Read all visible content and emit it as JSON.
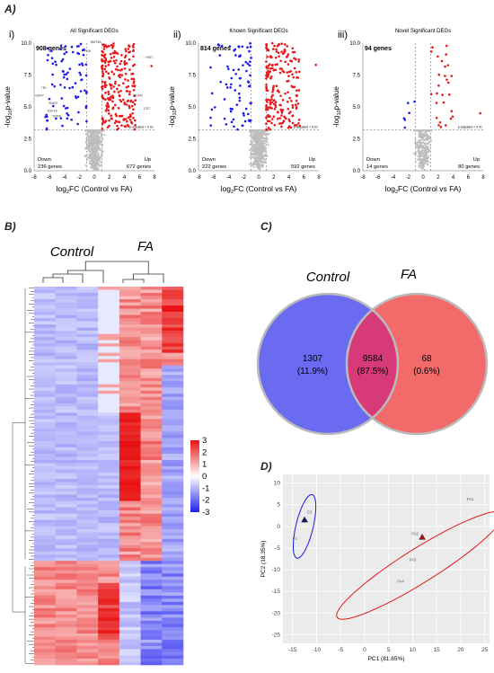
{
  "panels": {
    "A": "A)",
    "B": "B)",
    "C": "C)",
    "D": "D)"
  },
  "colors": {
    "up": "#e8191b",
    "down": "#1c1cf0",
    "ns": "#bdbdbd",
    "venn_control": "#6b6bf2",
    "venn_fa": "#f36a6a",
    "venn_overlap": "#d63a78",
    "heat_high": "#e81010",
    "heat_mid": "#ffffff",
    "heat_low": "#2020f0",
    "pca_ellipse_control": "#1a1adb",
    "pca_ellipse_fa": "#e01b1b"
  },
  "volcano": [
    {
      "roman": "i)",
      "title": "All Significant DEGs",
      "genes": "908 genes",
      "down_label": "Down",
      "down_genes": "236 genes",
      "up_label": "Up",
      "up_genes": "672 genes",
      "padj": "p-adjusted < 0.01",
      "gene_labels": [
        "HIST",
        "PGK",
        "NMT5A",
        "ITK",
        "SNKS",
        "ESF14",
        "BCAN",
        "GDF7",
        "TORA",
        "CD7"
      ]
    },
    {
      "roman": "ii)",
      "title": "Known Significant DEGs",
      "genes": "814 genes",
      "down_label": "Down",
      "down_genes": "222 genes",
      "up_label": "Up",
      "up_genes": "592 genes",
      "padj": "p-adjusted < 0.01",
      "gene_labels": []
    },
    {
      "roman": "iii)",
      "title": "Novel Significant DEGs",
      "genes": "94 genes",
      "down_label": "Down",
      "down_genes": "14 genes",
      "up_label": "Up",
      "up_genes": "80 genes",
      "padj": "p-adjusted < 0.01",
      "gene_labels": []
    }
  ],
  "heatmap": {
    "col_labels": [
      "Control",
      "FA"
    ],
    "legend_ticks": [
      "3",
      "2",
      "1",
      "0",
      "-1",
      "-2",
      "-3"
    ]
  },
  "venn": {
    "sets": [
      "Control",
      "FA"
    ],
    "left_count": "1307",
    "left_pct": "(11.9%)",
    "mid_count": "9584",
    "mid_pct": "(87.5%)",
    "right_count": "68",
    "right_pct": "(0.6%)"
  },
  "chart_data": [
    {
      "type": "scatter",
      "title": "All Significant DEGs",
      "xlabel": "log2FC (Control vs FA)",
      "ylabel": "-log10p-value",
      "xlim": [
        -8,
        8
      ],
      "ylim": [
        0,
        10
      ],
      "xticks": [
        "-8",
        "-6",
        "-4",
        "-2",
        "0",
        "2",
        "4",
        "6",
        "8"
      ],
      "yticks": [
        "0.0",
        "2.5",
        "5.0",
        "7.5",
        "10.0"
      ],
      "series": [
        {
          "name": "Down",
          "count": 236
        },
        {
          "name": "Up",
          "count": 672
        }
      ]
    },
    {
      "type": "scatter",
      "title": "Known Significant DEGs",
      "xlabel": "log2FC (Control vs FA)",
      "ylabel": "-log10p-value",
      "xlim": [
        -8,
        8
      ],
      "ylim": [
        0,
        10
      ],
      "xticks": [
        "-8",
        "-6",
        "-4",
        "-2",
        "0",
        "2",
        "4",
        "6",
        "8"
      ],
      "yticks": [
        "0.0",
        "2.5",
        "5.0",
        "7.5",
        "10.0"
      ],
      "series": [
        {
          "name": "Down",
          "count": 222
        },
        {
          "name": "Up",
          "count": 592
        }
      ]
    },
    {
      "type": "scatter",
      "title": "Novel Significant DEGs",
      "xlabel": "log2FC (Control vs FA)",
      "ylabel": "-log10p-value",
      "xlim": [
        -8,
        8
      ],
      "ylim": [
        0,
        10
      ],
      "xticks": [
        "-8",
        "-6",
        "-4",
        "-2",
        "0",
        "2",
        "4",
        "6",
        "8"
      ],
      "yticks": [
        "0.0",
        "2.5",
        "5.0",
        "7.5",
        "10.0"
      ],
      "series": [
        {
          "name": "Down",
          "count": 14
        },
        {
          "name": "Up",
          "count": 80
        }
      ]
    },
    {
      "type": "scatter",
      "title": "",
      "xlabel": "PC1 (81.65%)",
      "ylabel": "PC2 (18.35%)",
      "xlim": [
        -17,
        26
      ],
      "ylim": [
        -27,
        12
      ],
      "xticks": [
        "-15",
        "-10",
        "-5",
        "0",
        "5",
        "10",
        "15",
        "20",
        "25"
      ],
      "yticks": [
        "-25",
        "-20",
        "-15",
        "-10",
        "-5",
        "0",
        "5",
        "10"
      ],
      "points": [
        {
          "label": "C1",
          "x": -14.5,
          "y": -3
        },
        {
          "label": "C2",
          "x": -12.5,
          "y": 1
        },
        {
          "label": "C3",
          "x": -11.5,
          "y": 3
        },
        {
          "label": "FA1",
          "x": 22,
          "y": 6
        },
        {
          "label": "FA2",
          "x": 10.5,
          "y": -2
        },
        {
          "label": "FA3",
          "x": 10,
          "y": -8
        },
        {
          "label": "FA4",
          "x": 7.5,
          "y": -13
        }
      ],
      "centroids": [
        {
          "group": "Control",
          "x": -12.5,
          "y": 1.5
        },
        {
          "group": "FA",
          "x": 12,
          "y": -2.5
        }
      ]
    }
  ]
}
